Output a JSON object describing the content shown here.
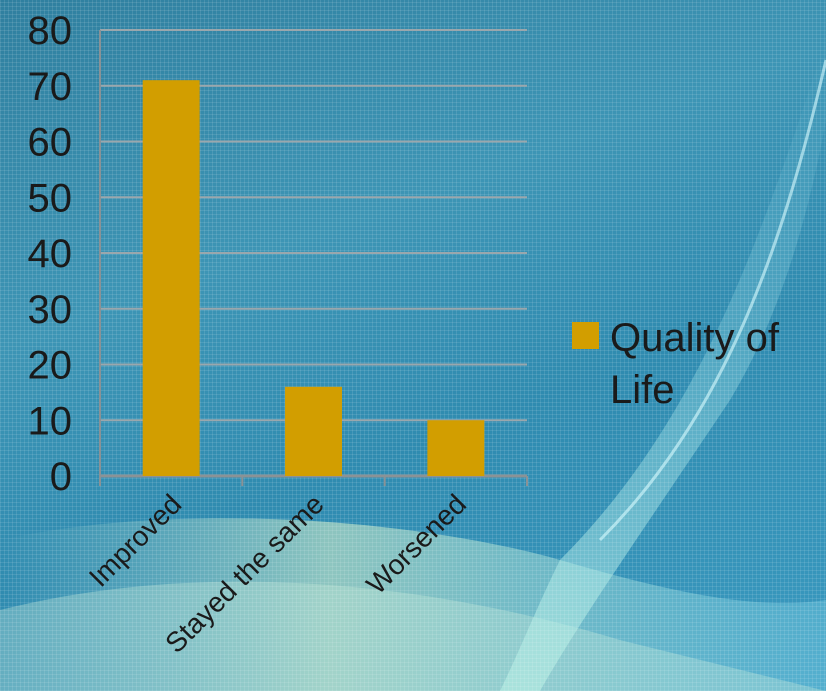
{
  "chart_data": {
    "type": "bar",
    "categories": [
      "Improved",
      "Stayed the same",
      "Worsened"
    ],
    "series": [
      {
        "name": "Quality of Life",
        "values": [
          71,
          16,
          10
        ]
      }
    ],
    "yticks": [
      "0",
      "10",
      "20",
      "30",
      "40",
      "50",
      "60",
      "70",
      "80"
    ],
    "ylim": [
      0,
      80
    ],
    "grid": true,
    "legend": "right",
    "title": "",
    "xlabel": "",
    "ylabel": ""
  },
  "colors": {
    "bar": "#d29e00",
    "grid": "#9aa7ad",
    "axis": "#8a9296"
  }
}
